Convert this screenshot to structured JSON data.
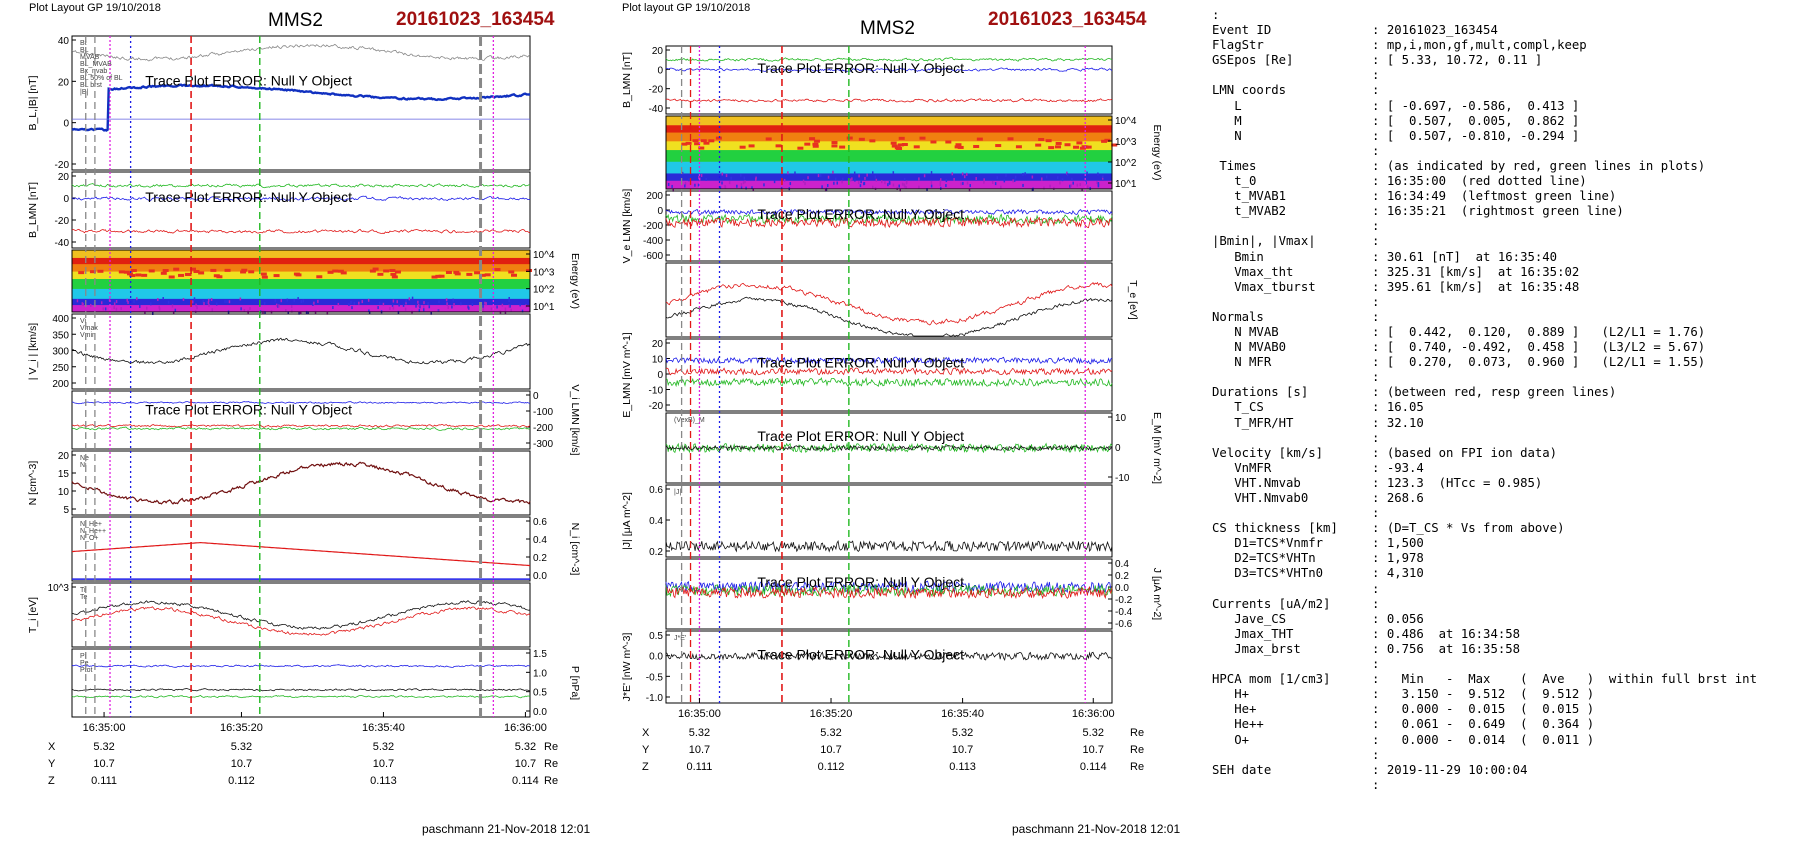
{
  "left": {
    "layout_label": "Plot Layout GP 19/10/2018",
    "spacecraft": "MMS2",
    "event": "20161023_163454",
    "footer": "paschmann 21-Nov-2018 12:01",
    "error_text": "Trace Plot ERROR: Null Y Object",
    "time_ticks": [
      "16:35:00",
      "16:35:20",
      "16:35:40",
      "16:36:00"
    ],
    "coord_rows": [
      {
        "label": "X",
        "values": [
          "5.32",
          "5.32",
          "5.32",
          "5.32"
        ],
        "unit": "Re"
      },
      {
        "label": "Y",
        "values": [
          "10.7",
          "10.7",
          "10.7",
          "10.7"
        ],
        "unit": "Re"
      },
      {
        "label": "Z",
        "values": [
          "0.111",
          "0.112",
          "0.113",
          "0.114"
        ],
        "unit": "Re"
      }
    ],
    "panels": [
      {
        "ylabel": "B_L,|B| [nT]",
        "yticks": [
          "40",
          "20",
          "0",
          "-20"
        ],
        "legend": [
          "Bt",
          "BL",
          "MVAB",
          "BL_MVAB",
          "Bx_nvab",
          "BL 50% of BL",
          "BL brst",
          "|B|"
        ],
        "error": true
      },
      {
        "ylabel": "B_LMN [nT]",
        "yticks": [
          "20",
          "0",
          "-20",
          "-40"
        ],
        "legend": [
          "B",
          "L",
          "M",
          "N"
        ],
        "error": true
      },
      {
        "ylabel": "Energy (eV)",
        "yticks_right": [
          "10^4",
          "10^3",
          "10^2",
          "10^1"
        ],
        "spectrogram": true
      },
      {
        "ylabel": "| V_i | [km/s]",
        "yticks": [
          "400",
          "350",
          "300",
          "250",
          "200"
        ],
        "legend": [
          "Vi",
          "Vmax",
          "Vmin"
        ]
      },
      {
        "ylabel": "V_i LMN [km/s]",
        "yticks_right": [
          "0",
          "-100",
          "-200",
          "-300"
        ],
        "error": true
      },
      {
        "ylabel": "N [cm^-3]",
        "yticks": [
          "20",
          "15",
          "10",
          "5"
        ],
        "legend": [
          "Ne",
          "Ni"
        ]
      },
      {
        "ylabel": "N_i [cm^-3]",
        "yticks_right": [
          "0.6",
          "0.4",
          "0.2",
          "0.0"
        ],
        "legend": [
          "N_He+",
          "N_He++",
          "N_O+"
        ]
      },
      {
        "ylabel": "T_i [eV]",
        "yticks": [
          "10^3"
        ],
        "legend": [
          "Ti",
          "Te"
        ]
      },
      {
        "ylabel": "P [nPa]",
        "yticks_right": [
          "1.5",
          "1.0",
          "0.5",
          "0.0"
        ],
        "legend": [
          "Pi",
          "Pe",
          "Ptot"
        ]
      }
    ]
  },
  "middle": {
    "layout_label": "Plot layout GP 19/10/2018",
    "spacecraft": "MMS2",
    "event": "20161023_163454",
    "footer": "paschmann 21-Nov-2018 12:01",
    "error_text": "Trace Plot ERROR: Null Y Object",
    "time_ticks": [
      "16:35:00",
      "16:35:20",
      "16:35:40",
      "16:36:00"
    ],
    "coord_rows": [
      {
        "label": "X",
        "values": [
          "5.32",
          "5.32",
          "5.32",
          "5.32"
        ],
        "unit": "Re"
      },
      {
        "label": "Y",
        "values": [
          "10.7",
          "10.7",
          "10.7",
          "10.7"
        ],
        "unit": "Re"
      },
      {
        "label": "Z",
        "values": [
          "0.111",
          "0.112",
          "0.113",
          "0.114"
        ],
        "unit": "Re"
      }
    ],
    "panels": [
      {
        "ylabel": "B_LMN [nT]",
        "yticks": [
          "20",
          "0",
          "-20",
          "-40"
        ],
        "error": true
      },
      {
        "ylabel": "Energy (eV)",
        "yticks_right": [
          "10^4",
          "10^3",
          "10^2",
          "10^1"
        ],
        "spectrogram": true
      },
      {
        "ylabel": "V_e LMN [km/s]",
        "yticks": [
          "200",
          "0",
          "-200",
          "-400",
          "-600"
        ],
        "error": true
      },
      {
        "ylabel": "T_e [eV]",
        "yticks_right": []
      },
      {
        "ylabel": "E_LMN [mV m^-1]",
        "yticks": [
          "20",
          "10",
          "0",
          "-10",
          "-20"
        ],
        "error": true
      },
      {
        "ylabel": "E_M [mV m^-2]",
        "yticks_right": [
          "10",
          "0",
          "-10"
        ],
        "error": true,
        "legend": [
          "(VexB)_M"
        ]
      },
      {
        "ylabel": "|J| [μA m^-2]",
        "yticks": [
          "0.6",
          "0.4",
          "0.2"
        ],
        "legend": [
          "|J|"
        ]
      },
      {
        "ylabel": "J [μA m^-2]",
        "yticks_right": [
          "0.4",
          "0.2",
          "0.0",
          "-0.2",
          "-0.4",
          "-0.6"
        ],
        "error": true
      },
      {
        "ylabel": "J*E' [nW m^-3]",
        "yticks": [
          "0.5",
          "0.0",
          "-0.5",
          "-1.0"
        ],
        "error": true,
        "legend": [
          "J*E'"
        ]
      }
    ]
  },
  "chart_data": [
    {
      "type": "line",
      "title": "MMS2 20161023_163454",
      "xlabel": "",
      "x_ticks": [
        "16:35:00",
        "16:35:20",
        "16:35:40",
        "16:36:00"
      ],
      "panels": 9,
      "note": "left column, multi-panel time series"
    },
    {
      "type": "line",
      "title": "MMS2 20161023_163454",
      "xlabel": "",
      "x_ticks": [
        "16:35:00",
        "16:35:20",
        "16:35:40",
        "16:36:00"
      ],
      "panels": 9,
      "note": "middle column, multi-panel time series"
    }
  ],
  "meta": {
    "header_colon": ":",
    "rows": [
      {
        "k": "Event ID",
        "v": "20161023_163454"
      },
      {
        "k": "FlagStr",
        "v": "mp,i,mon,gf,mult,compl,keep"
      },
      {
        "k": "GSEpos [Re]",
        "v": "[ 5.33, 10.72, 0.11 ]"
      },
      {
        "k": "",
        "v": ""
      },
      {
        "k": "LMN coords",
        "v": ""
      },
      {
        "k": "   L",
        "v": "[ -0.697, -0.586,  0.413 ]"
      },
      {
        "k": "   M",
        "v": "[  0.507,  0.005,  0.862 ]"
      },
      {
        "k": "   N",
        "v": "[  0.507, -0.810, -0.294 ]"
      },
      {
        "k": "",
        "v": ""
      },
      {
        "k": " Times",
        "v": "(as indicated by red, green lines in plots)"
      },
      {
        "k": "   t_0",
        "v": "16:35:00  (red dotted line)"
      },
      {
        "k": "   t_MVAB1",
        "v": "16:34:49  (leftmost green line)"
      },
      {
        "k": "   t_MVAB2",
        "v": "16:35:21  (rightmost green line)"
      },
      {
        "k": "",
        "v": ""
      },
      {
        "k": "|Bmin|, |Vmax|",
        "v": ""
      },
      {
        "k": "   Bmin",
        "v": "30.61 [nT]  at 16:35:40"
      },
      {
        "k": "   Vmax_tht",
        "v": "325.31 [km/s]  at 16:35:02"
      },
      {
        "k": "   Vmax_tburst",
        "v": "395.61 [km/s]  at 16:35:48"
      },
      {
        "k": "",
        "v": ""
      },
      {
        "k": "Normals",
        "v": ""
      },
      {
        "k": "   N MVAB",
        "v": "[  0.442,  0.120,  0.889 ]   (L2/L1 = 1.76)"
      },
      {
        "k": "   N MVAB0",
        "v": "[  0.740, -0.492,  0.458 ]   (L3/L2 = 5.67)"
      },
      {
        "k": "   N MFR",
        "v": "[  0.270,  0.073,  0.960 ]   (L2/L1 = 1.55)"
      },
      {
        "k": "",
        "v": ""
      },
      {
        "k": "Durations [s]",
        "v": "(between red, resp green lines)"
      },
      {
        "k": "   T_CS",
        "v": "16.05"
      },
      {
        "k": "   T_MFR/HT",
        "v": "32.10"
      },
      {
        "k": "",
        "v": ""
      },
      {
        "k": "Velocity [km/s]",
        "v": "(based on FPI ion data)"
      },
      {
        "k": "   VnMFR",
        "v": "-93.4"
      },
      {
        "k": "   VHT.Nmvab",
        "v": "123.3  (HTcc = 0.985)"
      },
      {
        "k": "   VHT.Nmvab0",
        "v": "268.6"
      },
      {
        "k": "",
        "v": ""
      },
      {
        "k": "CS thickness [km]",
        "v": "(D=T_CS * Vs from above)"
      },
      {
        "k": "   D1=TCS*Vnmfr",
        "v": "1,500"
      },
      {
        "k": "   D2=TCS*VHTn",
        "v": "1,978"
      },
      {
        "k": "   D3=TCS*VHTn0",
        "v": "4,310"
      },
      {
        "k": "",
        "v": ""
      },
      {
        "k": "Currents [uA/m2]",
        "v": ""
      },
      {
        "k": "   Jave_CS",
        "v": "0.056"
      },
      {
        "k": "   Jmax_THT",
        "v": "0.486  at 16:34:58"
      },
      {
        "k": "   Jmax_brst",
        "v": "0.756  at 16:35:58"
      },
      {
        "k": "",
        "v": ""
      },
      {
        "k": "HPCA mom [1/cm3]",
        "v": "  Min   -  Max    (  Ave   )  within full brst int"
      },
      {
        "k": "   H+",
        "v": "  3.150 -  9.512  (  9.512 )"
      },
      {
        "k": "   He+",
        "v": "  0.000 -  0.015  (  0.015 )"
      },
      {
        "k": "   He++",
        "v": "  0.061 -  0.649  (  0.364 )"
      },
      {
        "k": "   O+",
        "v": "  0.000 -  0.014  (  0.011 )"
      },
      {
        "k": "",
        "v": ""
      },
      {
        "k": "SEH date",
        "v": "2019-11-29 10:00:04"
      },
      {
        "k": "",
        "v": ""
      }
    ]
  },
  "colors": {
    "red": "#e01818",
    "green": "#22b822",
    "blue": "#1c1ce8",
    "black": "#111111",
    "magenta": "#e020e0",
    "gray": "#888888",
    "event": "#a01010"
  }
}
